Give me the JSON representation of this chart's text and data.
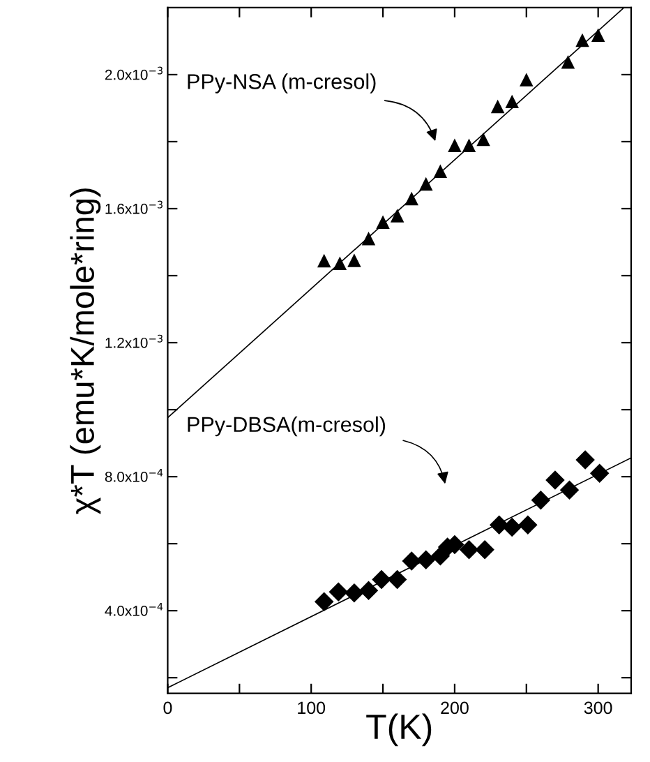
{
  "chart_data": {
    "type": "scatter",
    "xlabel": "T(K)",
    "ylabel": "χ*T (emu*K/mole*ring)",
    "xlim": [
      0,
      323
    ],
    "ylim": [
      0.000153,
      0.0022
    ],
    "xticks": [
      0,
      {
        "value": 50,
        "label": null
      },
      100,
      {
        "value": 150,
        "label": null
      },
      200,
      {
        "value": 250,
        "label": null
      },
      300
    ],
    "yticks": [
      {
        "value": 0.0002,
        "label": null
      },
      {
        "value": 0.0004,
        "label": "4.0x10$^{−4}$"
      },
      {
        "value": 0.0006,
        "label": null
      },
      {
        "value": 0.0008,
        "label": "8.0x10$^{−4}$"
      },
      {
        "value": 0.001,
        "label": null
      },
      {
        "value": 0.0012,
        "label": "1.2x10$^{−3}$"
      },
      {
        "value": 0.0014,
        "label": null
      },
      {
        "value": 0.0016,
        "label": "1.6x10$^{−3}$"
      },
      {
        "value": 0.0018,
        "label": null
      },
      {
        "value": 0.002,
        "label": "2.0x10$^{−3}$"
      }
    ],
    "grid": false,
    "legend": false,
    "series": [
      {
        "marker": "triangle",
        "color": "#000000",
        "x": [
          109,
          120,
          130,
          140,
          150,
          160,
          170,
          180,
          190,
          200,
          210,
          220,
          230,
          240,
          250,
          279,
          289,
          300
        ],
        "values": [
          0.001445,
          0.001437,
          0.001446,
          0.001511,
          0.00156,
          0.001579,
          0.00163,
          0.001674,
          0.001712,
          0.001789,
          0.001789,
          0.001807,
          0.001905,
          0.00192,
          0.001985,
          0.002038,
          0.002103,
          0.002118
        ]
      },
      {
        "marker": "diamond",
        "color": "#000000",
        "x": [
          109,
          119,
          130,
          140,
          149,
          160,
          170,
          180,
          190,
          195,
          200,
          210,
          221,
          231,
          240,
          251,
          260,
          270,
          280,
          291,
          301
        ],
        "values": [
          0.000427,
          0.000456,
          0.000453,
          0.00046,
          0.000493,
          0.000493,
          0.000548,
          0.000552,
          0.000563,
          0.00059,
          0.000597,
          0.000582,
          0.000582,
          0.000656,
          0.000649,
          0.000656,
          0.00073,
          0.00079,
          0.00076,
          0.00085,
          0.00081
        ]
      },
      {
        "type": "line",
        "marker": "none",
        "line_style": "solid",
        "color": "#000000",
        "x": [
          0,
          318
        ],
        "values": [
          0.000976,
          0.0022
        ]
      },
      {
        "type": "line",
        "marker": "none",
        "line_style": "solid",
        "color": "#000000",
        "x": [
          0,
          323
        ],
        "values": [
          0.00017,
          0.000856
        ]
      }
    ],
    "annotations": [
      "PPy-NSA (m-cresol)",
      "PPy-DBSA(m-cresol)"
    ]
  }
}
